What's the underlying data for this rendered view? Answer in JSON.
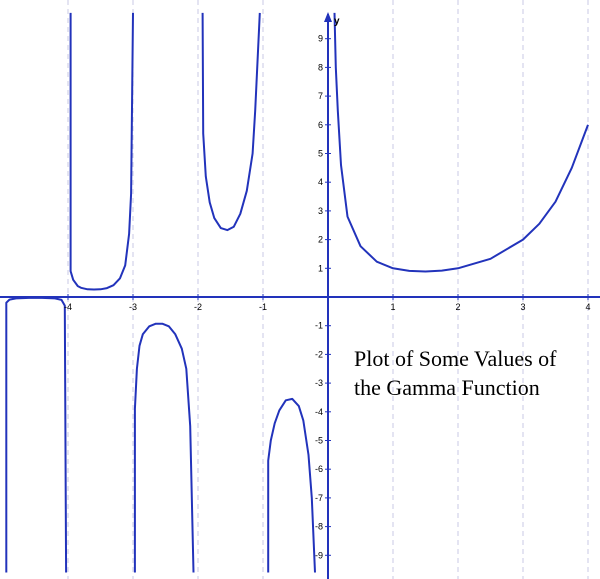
{
  "chart_data": {
    "type": "line",
    "title": "",
    "xlabel": "",
    "ylabel": "y",
    "xlim": [
      -5,
      4
    ],
    "ylim": [
      -9.5,
      9.9
    ],
    "grid": "vertical",
    "x_ticks": [
      -4,
      -3,
      -2,
      -1,
      1,
      2,
      3,
      4
    ],
    "x_tick_labels": [
      "-4",
      "-3",
      "-2",
      "-1",
      "1",
      "2",
      "3",
      "4"
    ],
    "y_ticks": [
      -9,
      -8,
      -7,
      -6,
      -5,
      -4,
      -3,
      -2,
      -1,
      1,
      2,
      3,
      4,
      5,
      6,
      7,
      8,
      9
    ],
    "y_tick_labels": [
      "-9",
      "-8",
      "-7",
      "-6",
      "-5",
      "-4",
      "-3",
      "-2",
      "-1",
      "1",
      "2",
      "3",
      "4",
      "5",
      "6",
      "7",
      "8",
      "9"
    ],
    "annotation": [
      "Plot of Some Values of",
      "the Gamma Function"
    ],
    "colors": {
      "curve": "#2233bb",
      "axes": "#2233bb",
      "grid": "#c8c8e6"
    },
    "series": [
      {
        "values": [
          [
            [
              -4.95,
              -9.6
            ],
            [
              -4.95,
              -0.2
            ],
            [
              -4.9,
              -0.09
            ],
            [
              -4.8,
              -0.05
            ],
            [
              -4.6,
              -0.03
            ],
            [
              -4.4,
              -0.03
            ],
            [
              -4.2,
              -0.05
            ],
            [
              -4.1,
              -0.1
            ],
            [
              -4.05,
              -0.3
            ],
            [
              -4.03,
              -9.6
            ]
          ],
          [
            [
              -3.96,
              9.9
            ],
            [
              -3.96,
              0.9
            ],
            [
              -3.92,
              0.6
            ],
            [
              -3.85,
              0.38
            ],
            [
              -3.8,
              0.32
            ],
            [
              -3.7,
              0.27
            ],
            [
              -3.6,
              0.26
            ],
            [
              -3.5,
              0.27
            ],
            [
              -3.4,
              0.31
            ],
            [
              -3.3,
              0.41
            ],
            [
              -3.2,
              0.65
            ],
            [
              -3.12,
              1.1
            ],
            [
              -3.06,
              2.2
            ],
            [
              -3.03,
              3.6
            ],
            [
              -3.0,
              9.9
            ]
          ],
          [
            [
              -2.97,
              -9.6
            ],
            [
              -2.97,
              -3.9
            ],
            [
              -2.94,
              -2.5
            ],
            [
              -2.9,
              -1.7
            ],
            [
              -2.85,
              -1.3
            ],
            [
              -2.75,
              -1.02
            ],
            [
              -2.65,
              -0.93
            ],
            [
              -2.55,
              -0.93
            ],
            [
              -2.45,
              -1.02
            ],
            [
              -2.35,
              -1.3
            ],
            [
              -2.25,
              -1.8
            ],
            [
              -2.18,
              -2.5
            ],
            [
              -2.12,
              -4.5
            ],
            [
              -2.07,
              -9.6
            ]
          ],
          [
            [
              -1.93,
              9.9
            ],
            [
              -1.92,
              5.7
            ],
            [
              -1.88,
              4.2
            ],
            [
              -1.82,
              3.3
            ],
            [
              -1.75,
              2.75
            ],
            [
              -1.65,
              2.4
            ],
            [
              -1.55,
              2.33
            ],
            [
              -1.45,
              2.45
            ],
            [
              -1.35,
              2.9
            ],
            [
              -1.25,
              3.7
            ],
            [
              -1.16,
              5.0
            ],
            [
              -1.12,
              6.5
            ],
            [
              -1.05,
              9.9
            ]
          ],
          [
            [
              -0.92,
              -9.6
            ],
            [
              -0.92,
              -5.7
            ],
            [
              -0.88,
              -5.0
            ],
            [
              -0.82,
              -4.4
            ],
            [
              -0.75,
              -3.95
            ],
            [
              -0.65,
              -3.6
            ],
            [
              -0.55,
              -3.55
            ],
            [
              -0.45,
              -3.8
            ],
            [
              -0.38,
              -4.3
            ],
            [
              -0.3,
              -5.5
            ],
            [
              -0.25,
              -7.0
            ],
            [
              -0.2,
              -9.6
            ]
          ],
          [
            [
              0.1,
              9.9
            ],
            [
              0.12,
              8.0
            ],
            [
              0.15,
              6.5
            ],
            [
              0.2,
              4.6
            ],
            [
              0.3,
              2.8
            ],
            [
              0.5,
              1.77
            ],
            [
              0.75,
              1.23
            ],
            [
              1.0,
              1.0
            ],
            [
              1.25,
              0.91
            ],
            [
              1.5,
              0.89
            ],
            [
              1.75,
              0.92
            ],
            [
              2.0,
              1.0
            ],
            [
              2.5,
              1.33
            ],
            [
              3.0,
              2.0
            ],
            [
              3.25,
              2.55
            ],
            [
              3.5,
              3.32
            ],
            [
              3.75,
              4.5
            ],
            [
              4.0,
              6.0
            ]
          ]
        ]
      }
    ]
  }
}
